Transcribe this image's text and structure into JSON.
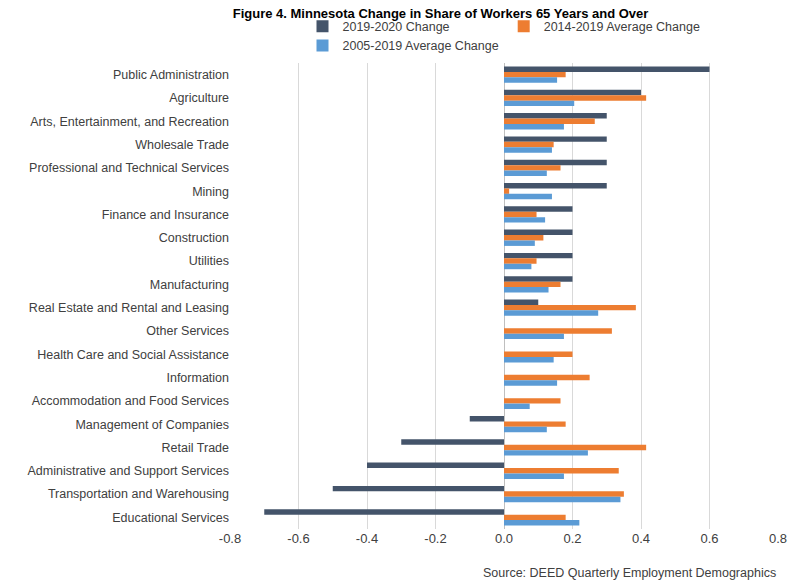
{
  "chart_data": {
    "type": "bar",
    "orientation": "horizontal",
    "title": "Figure 4. Minnesota Change in Share of Workers 65 Years and Over",
    "annotations": [
      "Source: DEED Quarterly Employment Demographics"
    ],
    "categories": [
      "Public Administration",
      "Agriculture",
      "Arts, Entertainment, and Recreation",
      "Wholesale Trade",
      "Professional and Technical Services",
      "Mining",
      "Finance and Insurance",
      "Construction",
      "Utilities",
      "Manufacturing",
      "Real Estate and Rental and Leasing",
      "Other Services",
      "Health Care and Social Assistance",
      "Information",
      "Accommodation and Food Services",
      "Management of Companies",
      "Retail Trade",
      "Administrative and Support Services",
      "Transportation and Warehousing",
      "Educational Services"
    ],
    "series": [
      {
        "name": "2019-2020 Change",
        "color": "#44546a",
        "values": [
          0.6,
          0.4,
          0.3,
          0.3,
          0.3,
          0.3,
          0.2,
          0.2,
          0.2,
          0.2,
          0.1,
          0,
          0,
          0,
          0,
          -0.1,
          -0.3,
          -0.4,
          -0.5,
          -0.7
        ]
      },
      {
        "name": "2014-2019 Average Change",
        "color": "#ed7d31",
        "values": [
          0.18,
          0.415,
          0.265,
          0.145,
          0.165,
          0.015,
          0.095,
          0.115,
          0.095,
          0.165,
          0.385,
          0.315,
          0.2,
          0.25,
          0.165,
          0.18,
          0.415,
          0.335,
          0.35,
          0.18
        ]
      },
      {
        "name": "2005-2019 Average Change",
        "color": "#5b9bd5",
        "values": [
          0.155,
          0.205,
          0.175,
          0.14,
          0.125,
          0.14,
          0.12,
          0.09,
          0.08,
          0.13,
          0.275,
          0.175,
          0.145,
          0.155,
          0.075,
          0.125,
          0.245,
          0.175,
          0.34,
          0.22
        ]
      }
    ],
    "xlim": [
      -0.8,
      0.8
    ],
    "xticks": [
      -0.8,
      -0.6,
      -0.4,
      -0.2,
      {
        "value": 0,
        "label": "0.0"
      },
      0.2,
      0.4,
      0.6,
      0.8
    ],
    "grid": true,
    "legend": "top"
  }
}
